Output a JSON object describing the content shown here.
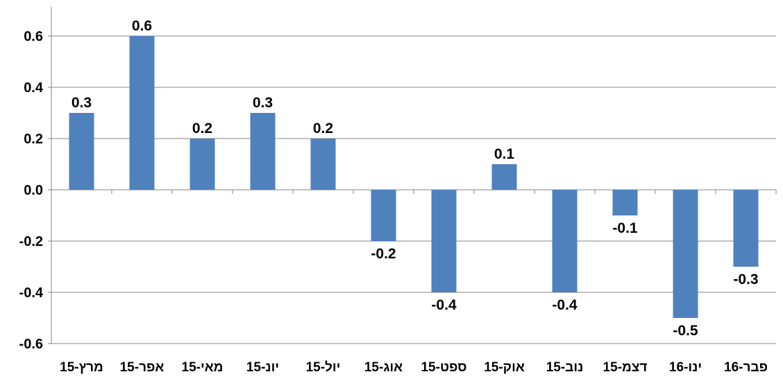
{
  "chart_data": {
    "type": "bar",
    "title": "",
    "xlabel": "",
    "ylabel": "",
    "categories": [
      "מרץ-15",
      "אפר-15",
      "מאי-15",
      "יונ-15",
      "יול-15",
      "אוג-15",
      "ספט-15",
      "אוק-15",
      "נוב-15",
      "דצמ-15",
      "ינו-16",
      "פבר-16"
    ],
    "values": [
      0.3,
      0.6,
      0.2,
      0.3,
      0.2,
      -0.2,
      -0.4,
      0.1,
      -0.4,
      -0.1,
      -0.5,
      -0.3
    ],
    "data_labels": [
      "0.3",
      "0.6",
      "0.2",
      "0.3",
      "0.2",
      "-0.2",
      "-0.4",
      "0.1",
      "-0.4",
      "-0.1",
      "-0.5",
      "-0.3"
    ],
    "ylim": [
      -0.6,
      0.7
    ],
    "yticks": [
      0.6,
      0.4,
      0.2,
      0.0,
      -0.2,
      -0.4,
      -0.6
    ],
    "ytick_labels": [
      "0.6",
      "0.4",
      "0.2",
      "0.0",
      "-0.2",
      "-0.4",
      "-0.6"
    ],
    "grid": true,
    "legend": "none",
    "bar_color": "#4f81bd",
    "grid_color": "#868686"
  }
}
